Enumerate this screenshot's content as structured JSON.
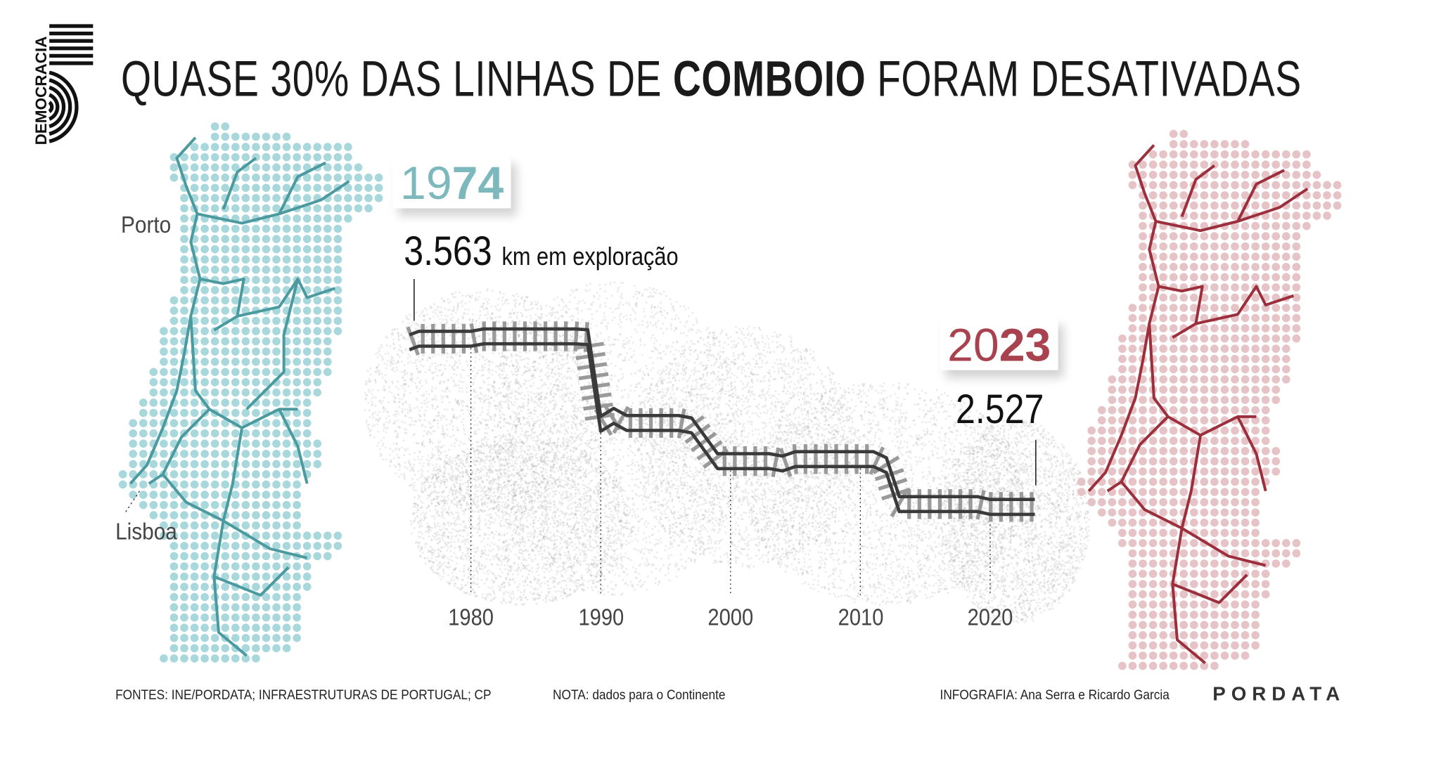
{
  "logo": {
    "text": "DEMOCRACIA",
    "mark": "5"
  },
  "title": {
    "before": "QUASE 30% DAS LINHAS DE ",
    "bold": "COMBOIO",
    "after": " FORAM DESATIVADAS"
  },
  "start_box": {
    "year_light": "19",
    "year_bold": "74",
    "color": "#7db8bd"
  },
  "end_box": {
    "year_light": "20",
    "year_bold": "23",
    "color": "#a8424e"
  },
  "start_label": {
    "value": "3.563",
    "unit": "km em exploração"
  },
  "end_label": {
    "value": "2.527"
  },
  "map_left": {
    "cities": [
      "Porto",
      "Lisboa"
    ],
    "dot_color": "#a9d8dc",
    "line_color": "#4a9aa0"
  },
  "map_right": {
    "dot_color": "#e6c3c6",
    "line_color": "#9c2f3c"
  },
  "chart_data": {
    "type": "line",
    "title": "",
    "xlabel": "",
    "ylabel": "",
    "x_ticks": [
      "1980",
      "1990",
      "2000",
      "2010",
      "2020"
    ],
    "unit": "km",
    "grid": false,
    "x": [
      1975,
      1976,
      1980,
      1981,
      1988,
      1989,
      1990,
      1991,
      1992,
      1996,
      1997,
      1999,
      2003,
      2004,
      2005,
      2011,
      2012,
      2013,
      2019,
      2020,
      2023
    ],
    "values": [
      3563,
      3585,
      3585,
      3600,
      3600,
      3595,
      3050,
      3100,
      3055,
      3055,
      3040,
      2815,
      2815,
      2800,
      2828,
      2828,
      2790,
      2545,
      2545,
      2527,
      2527
    ],
    "annotations": [
      "3.563 km em exploração",
      "2.527"
    ]
  },
  "footer": {
    "sources": "FONTES: INE/PORDATA; INFRAESTRUTURAS DE PORTUGAL; CP",
    "note": "NOTA: dados para o Continente",
    "credits": "INFOGRAFIA: Ana Serra e Ricardo Garcia",
    "brand": "PORDATA"
  }
}
